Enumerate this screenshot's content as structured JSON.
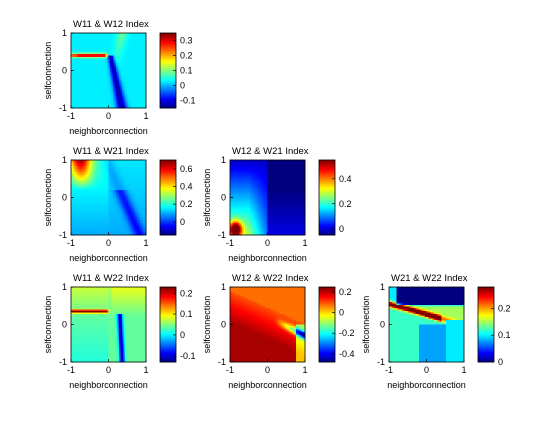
{
  "figure": {
    "background": "#ffffff",
    "colormap": "jet"
  },
  "chart_data": [
    {
      "type": "heatmap",
      "title": "W11 & W12 Index",
      "xlabel": "neighborconnection",
      "ylabel": "selfconnection",
      "xlim": [
        -1,
        1
      ],
      "ylim": [
        -1,
        1
      ],
      "xticks": [
        -1,
        0,
        1
      ],
      "yticks": [
        -1,
        0,
        1
      ],
      "colorbar": {
        "clim": [
          -0.15,
          0.35
        ],
        "ticks": [
          -0.1,
          0,
          0.1,
          0.2,
          0.3
        ],
        "tick_labels": [
          "-0.1",
          "0",
          "0.1",
          "0.2",
          "0.3"
        ]
      },
      "pattern": "w11w12"
    },
    {
      "type": "heatmap",
      "title": "W11 & W21 Index",
      "xlabel": "neighborconnection",
      "ylabel": "selfconnection",
      "xlim": [
        -1,
        1
      ],
      "ylim": [
        -1,
        1
      ],
      "xticks": [
        -1,
        0,
        1
      ],
      "yticks": [
        -1,
        0,
        1
      ],
      "colorbar": {
        "clim": [
          -0.15,
          0.7
        ],
        "ticks": [
          0,
          0.2,
          0.4,
          0.6
        ],
        "tick_labels": [
          "0",
          "0.2",
          "0.4",
          "0.6"
        ]
      },
      "pattern": "w11w21"
    },
    {
      "type": "heatmap",
      "title": "W12 & W21 Index",
      "xlabel": "neighborconnection",
      "ylabel": "selfconnection",
      "xlim": [
        -1,
        1
      ],
      "ylim": [
        -1,
        1
      ],
      "xticks": [
        -1,
        0,
        1
      ],
      "yticks": [
        -1,
        0,
        1
      ],
      "colorbar": {
        "clim": [
          -0.05,
          0.55
        ],
        "ticks": [
          0,
          0.2,
          0.4
        ],
        "tick_labels": [
          "0",
          "0.2",
          "0.4"
        ]
      },
      "pattern": "w12w21"
    },
    {
      "type": "heatmap",
      "title": "W11 & W22 Index",
      "xlabel": "neighborconnection",
      "ylabel": "selfconnection",
      "xlim": [
        -1,
        1
      ],
      "ylim": [
        -1,
        1
      ],
      "xticks": [
        -1,
        0,
        1
      ],
      "yticks": [
        -1,
        0,
        1
      ],
      "colorbar": {
        "clim": [
          -0.13,
          0.23
        ],
        "ticks": [
          -0.1,
          0,
          0.1,
          0.2
        ],
        "tick_labels": [
          "-0.1",
          "0",
          "0.1",
          "0.2"
        ]
      },
      "pattern": "w11w22"
    },
    {
      "type": "heatmap",
      "title": "W12 & W22 Index",
      "xlabel": "neighborconnection",
      "ylabel": "selfconnection",
      "xlim": [
        -1,
        1
      ],
      "ylim": [
        -1,
        1
      ],
      "xticks": [
        -1,
        0,
        1
      ],
      "yticks": [
        -1,
        0,
        1
      ],
      "colorbar": {
        "clim": [
          -0.48,
          0.25
        ],
        "ticks": [
          -0.4,
          -0.2,
          0,
          0.2
        ],
        "tick_labels": [
          "-0.4",
          "-0.2",
          "0",
          "0.2"
        ]
      },
      "pattern": "w12w22"
    },
    {
      "type": "heatmap",
      "title": "W21 & W22 Index",
      "xlabel": "neighborconnection",
      "ylabel": "selfconnection",
      "xlim": [
        -1,
        1
      ],
      "ylim": [
        -1,
        1
      ],
      "xticks": [
        -1,
        0,
        1
      ],
      "yticks": [
        -1,
        0,
        1
      ],
      "colorbar": {
        "clim": [
          0,
          0.28
        ],
        "ticks": [
          0,
          0.1,
          0.2
        ],
        "tick_labels": [
          "0",
          "0.1",
          "0.2"
        ]
      },
      "pattern": "w21w22"
    }
  ]
}
